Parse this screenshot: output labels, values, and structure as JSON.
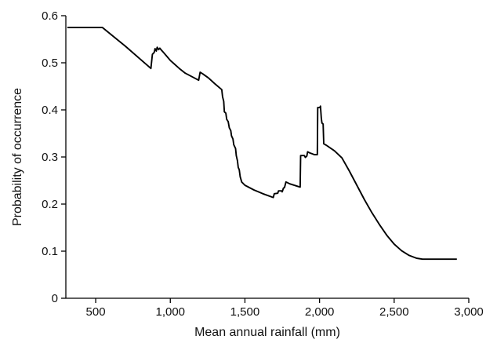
{
  "chart_data": {
    "type": "line",
    "title": "",
    "xlabel": "Mean annual rainfall (mm)",
    "ylabel": "Probability of occurrence",
    "xlim": [
      300,
      3000
    ],
    "ylim": [
      0,
      0.6
    ],
    "xticks": [
      500,
      1000,
      1500,
      2000,
      2500,
      3000
    ],
    "xtick_labels": [
      "500",
      "1,000",
      "1,500",
      "2,000",
      "2,500",
      "3,000"
    ],
    "yticks": [
      0,
      0.1,
      0.2,
      0.3,
      0.4,
      0.5,
      0.6
    ],
    "ytick_labels": [
      "0",
      "0.1",
      "0.2",
      "0.3",
      "0.4",
      "0.5",
      "0.6"
    ],
    "grid": false,
    "legend": "none",
    "series": [
      {
        "color": "#000000",
        "points": [
          [
            310,
            0.575
          ],
          [
            545,
            0.575
          ],
          [
            700,
            0.535
          ],
          [
            870,
            0.488
          ],
          [
            880,
            0.518
          ],
          [
            892,
            0.522
          ],
          [
            898,
            0.53
          ],
          [
            906,
            0.525
          ],
          [
            912,
            0.533
          ],
          [
            922,
            0.528
          ],
          [
            930,
            0.531
          ],
          [
            940,
            0.527
          ],
          [
            960,
            0.52
          ],
          [
            1000,
            0.505
          ],
          [
            1060,
            0.488
          ],
          [
            1100,
            0.478
          ],
          [
            1190,
            0.463
          ],
          [
            1200,
            0.48
          ],
          [
            1215,
            0.477
          ],
          [
            1255,
            0.468
          ],
          [
            1300,
            0.455
          ],
          [
            1345,
            0.443
          ],
          [
            1350,
            0.428
          ],
          [
            1358,
            0.418
          ],
          [
            1362,
            0.396
          ],
          [
            1372,
            0.393
          ],
          [
            1378,
            0.38
          ],
          [
            1388,
            0.375
          ],
          [
            1395,
            0.362
          ],
          [
            1405,
            0.356
          ],
          [
            1410,
            0.345
          ],
          [
            1420,
            0.338
          ],
          [
            1425,
            0.326
          ],
          [
            1437,
            0.318
          ],
          [
            1442,
            0.303
          ],
          [
            1450,
            0.292
          ],
          [
            1455,
            0.278
          ],
          [
            1462,
            0.273
          ],
          [
            1468,
            0.258
          ],
          [
            1478,
            0.247
          ],
          [
            1500,
            0.24
          ],
          [
            1560,
            0.23
          ],
          [
            1620,
            0.222
          ],
          [
            1690,
            0.214
          ],
          [
            1697,
            0.222
          ],
          [
            1720,
            0.223
          ],
          [
            1725,
            0.228
          ],
          [
            1745,
            0.228
          ],
          [
            1750,
            0.226
          ],
          [
            1758,
            0.234
          ],
          [
            1765,
            0.235
          ],
          [
            1775,
            0.247
          ],
          [
            1800,
            0.243
          ],
          [
            1850,
            0.238
          ],
          [
            1870,
            0.236
          ],
          [
            1873,
            0.303
          ],
          [
            1898,
            0.303
          ],
          [
            1905,
            0.299
          ],
          [
            1915,
            0.302
          ],
          [
            1920,
            0.311
          ],
          [
            1932,
            0.309
          ],
          [
            1965,
            0.305
          ],
          [
            1985,
            0.305
          ],
          [
            1988,
            0.405
          ],
          [
            2002,
            0.405
          ],
          [
            2006,
            0.408
          ],
          [
            2012,
            0.382
          ],
          [
            2016,
            0.372
          ],
          [
            2024,
            0.37
          ],
          [
            2028,
            0.328
          ],
          [
            2045,
            0.325
          ],
          [
            2100,
            0.313
          ],
          [
            2150,
            0.298
          ],
          [
            2200,
            0.27
          ],
          [
            2250,
            0.24
          ],
          [
            2300,
            0.21
          ],
          [
            2350,
            0.182
          ],
          [
            2400,
            0.157
          ],
          [
            2450,
            0.134
          ],
          [
            2500,
            0.115
          ],
          [
            2550,
            0.101
          ],
          [
            2600,
            0.091
          ],
          [
            2650,
            0.085
          ],
          [
            2690,
            0.083
          ],
          [
            2920,
            0.083
          ]
        ]
      }
    ]
  }
}
